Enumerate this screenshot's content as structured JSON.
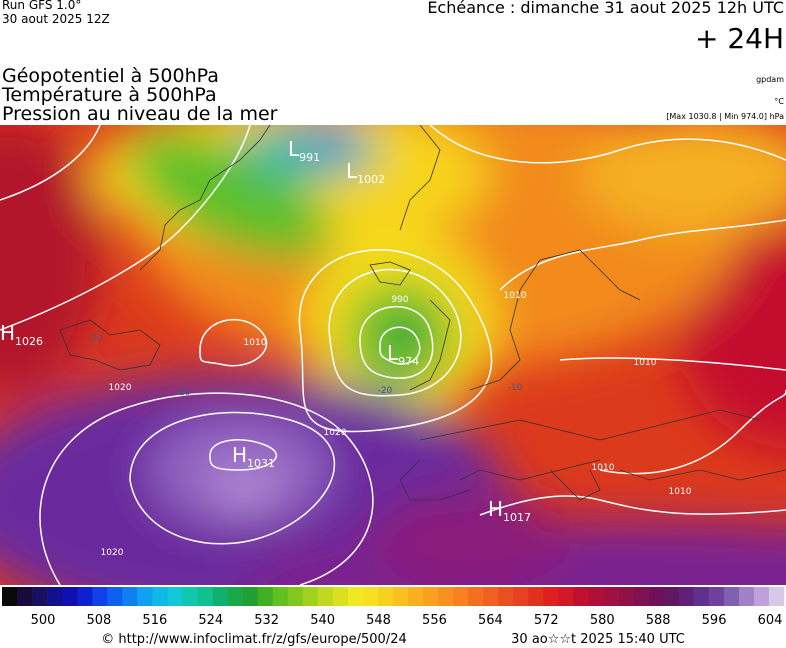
{
  "header": {
    "run": "Run GFS 1.0°",
    "date": "30 aout 2025 12Z",
    "valid": "Echéance : dimanche 31 aout 2025 12h UTC",
    "lead": "+ 24H"
  },
  "titles": [
    "Géopotentiel à 500hPa",
    "Température à 500hPa",
    "Pression au niveau de la mer"
  ],
  "units": {
    "geopotential": "gpdam",
    "temperature": "°C",
    "pressure": "[Max 1030.8 | Min 974.0] hPa"
  },
  "centers": [
    {
      "letter": "L",
      "value": 991
    },
    {
      "letter": "L",
      "value": 1002
    },
    {
      "letter": "H",
      "value": 1026
    },
    {
      "letter": "L",
      "value": 974
    },
    {
      "letter": "H",
      "value": 1031
    },
    {
      "letter": "H",
      "value": 1017
    }
  ],
  "isobar_labels": [
    1020,
    1020,
    1020,
    1010,
    1010,
    990,
    1010,
    1010,
    1010
  ],
  "temperature_labels": [
    -10,
    -20,
    -10,
    -20
  ],
  "legend": {
    "ticks": [
      500,
      508,
      516,
      524,
      532,
      540,
      548,
      556,
      564,
      572,
      580,
      588,
      596,
      604
    ]
  },
  "footer": {
    "source": "© http://www.infoclimat.fr/z/gfs/europe/500/24",
    "generated": "30 ao☆☆t 2025 15:40 UTC"
  }
}
